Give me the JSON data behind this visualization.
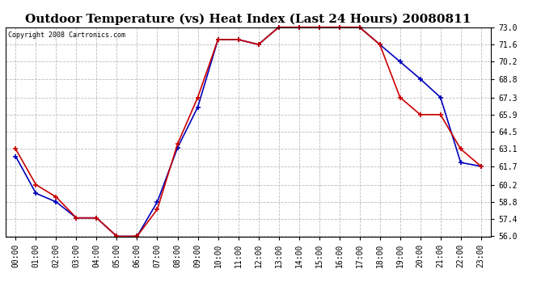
{
  "title": "Outdoor Temperature (vs) Heat Index (Last 24 Hours) 20080811",
  "copyright_text": "Copyright 2008 Cartronics.com",
  "x_labels": [
    "00:00",
    "01:00",
    "02:00",
    "03:00",
    "04:00",
    "05:00",
    "06:00",
    "07:00",
    "08:00",
    "09:00",
    "10:00",
    "11:00",
    "12:00",
    "13:00",
    "14:00",
    "15:00",
    "16:00",
    "17:00",
    "18:00",
    "19:00",
    "20:00",
    "21:00",
    "22:00",
    "23:00"
  ],
  "temp_data": [
    62.5,
    59.5,
    58.8,
    57.5,
    57.5,
    56.0,
    56.0,
    58.8,
    63.2,
    66.5,
    72.0,
    72.0,
    71.6,
    73.0,
    73.0,
    73.0,
    73.0,
    73.0,
    71.6,
    70.2,
    68.8,
    67.3,
    62.0,
    61.7
  ],
  "heat_index_data": [
    63.1,
    60.2,
    59.2,
    57.5,
    57.5,
    56.0,
    56.0,
    58.2,
    63.5,
    67.3,
    72.0,
    72.0,
    71.6,
    73.0,
    73.0,
    73.0,
    73.0,
    73.0,
    71.6,
    67.3,
    65.9,
    65.9,
    63.1,
    61.7
  ],
  "temp_color": "#0000bb",
  "heat_index_color": "#cc0000",
  "ylim_min": 56.0,
  "ylim_max": 73.0,
  "yticks": [
    56.0,
    57.4,
    58.8,
    60.2,
    61.7,
    63.1,
    64.5,
    65.9,
    67.3,
    68.8,
    70.2,
    71.6,
    73.0
  ],
  "bg_color": "#ffffff",
  "plot_bg_color": "#ffffff",
  "grid_color": "#bbbbbb",
  "title_fontsize": 11,
  "copyright_fontsize": 6,
  "tick_fontsize": 7,
  "marker": "+",
  "marker_size": 5,
  "linewidth": 1.2
}
